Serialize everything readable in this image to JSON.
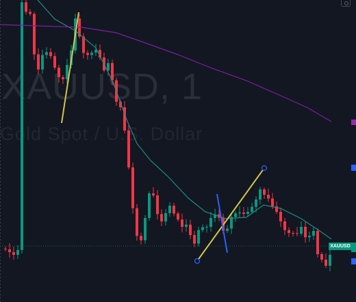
{
  "watermark": {
    "symbol": "XAUUSD, 1",
    "description": "Gold Spot / U.S. Dollar"
  },
  "price_tag": {
    "label": "XAUUSD"
  },
  "colors": {
    "background": "#131722",
    "up_candle": "#089981",
    "down_candle": "#f23645",
    "moving_average_fast": "#1e8c82",
    "moving_average_slow": "#7b1fa2",
    "trendline_yellow": "#d4c54a",
    "trendline_blue": "#2962ff",
    "marker_blue": "#2962ff",
    "marker_magenta": "#9c27b0",
    "marker_teal": "#089981"
  },
  "icons": [
    "settings-icon"
  ],
  "right_markers": [
    "marker-magenta",
    "marker-blue",
    "marker-teal",
    "marker-blue-lower"
  ]
}
